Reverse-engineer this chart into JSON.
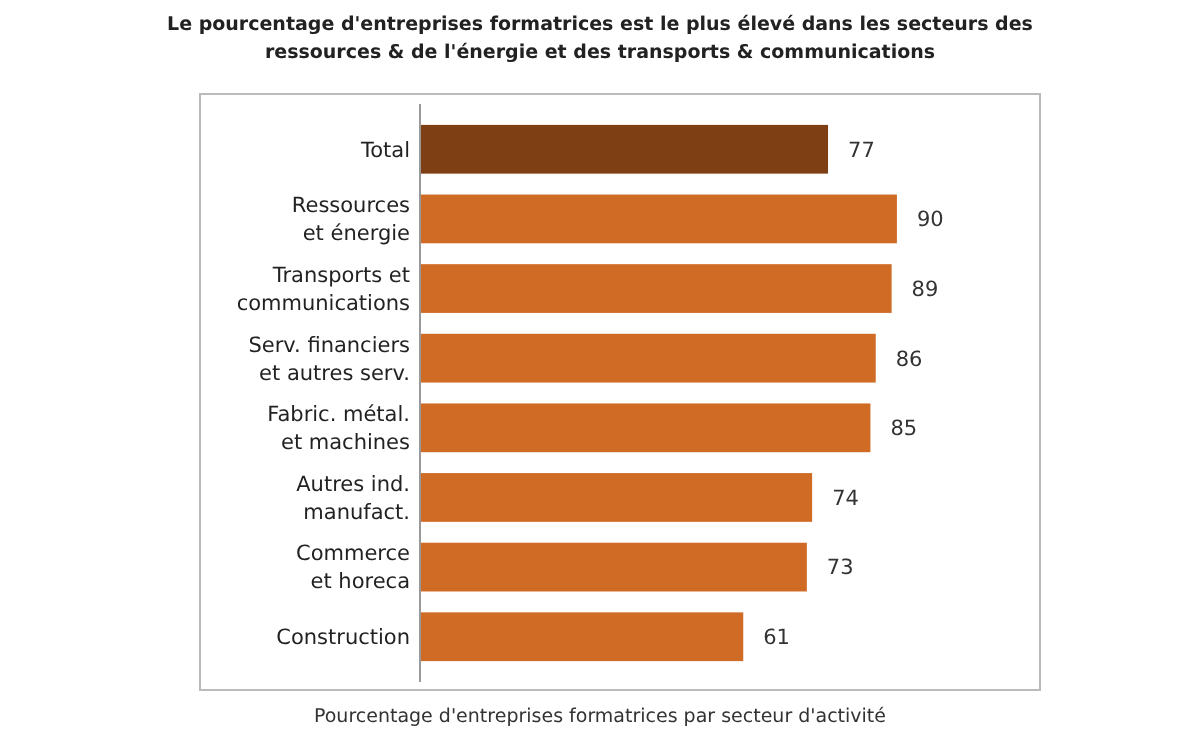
{
  "chart_data": {
    "type": "bar",
    "orientation": "horizontal",
    "title": "Le pourcentage d'entreprises formatrices est le plus élevé dans les secteurs des\nressources & de l'énergie et des transports & communications",
    "xlabel": "Pourcentage d'entreprises formatrices par secteur d'activité",
    "categories": [
      "Total",
      "Ressources\net énergie",
      "Transports et\ncommunications",
      "Serv. financiers\net autres serv.",
      "Fabric. métal.\net machines",
      "Autres ind.\nmanufact.",
      "Commerce\net horeca",
      "Construction"
    ],
    "values": [
      77,
      90,
      89,
      86,
      85,
      74,
      73,
      61
    ],
    "colors": [
      "#7f3f14",
      "#d06b26",
      "#d06b26",
      "#d06b26",
      "#d06b26",
      "#d06b26",
      "#d06b26",
      "#d06b26"
    ],
    "xlim": [
      0,
      117
    ],
    "data_labels": true
  }
}
